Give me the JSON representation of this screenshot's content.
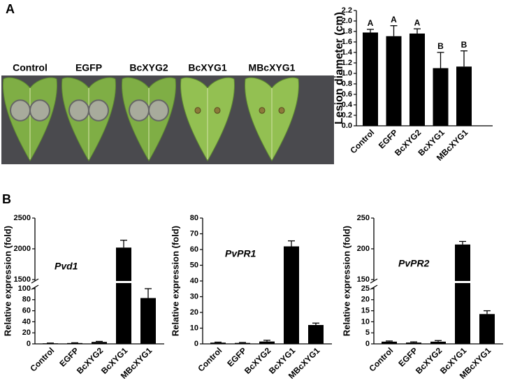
{
  "panel_labels": [
    "A",
    "B"
  ],
  "leaf_labels": [
    "Control",
    "EGFP",
    "BcXYG2",
    "BcXYG1",
    "MBcXYG1"
  ],
  "chart_data": [
    {
      "type": "bar",
      "ylabel": "Lesion diameter (cm)",
      "categories": [
        "Control",
        "EGFP",
        "BcXYG2",
        "BcXYG1",
        "MBcXYG1"
      ],
      "values": [
        1.78,
        1.71,
        1.76,
        1.1,
        1.13
      ],
      "errors": [
        0.06,
        0.2,
        0.09,
        0.3,
        0.3
      ],
      "annotations": [
        "A",
        "A",
        "A",
        "B",
        "B"
      ],
      "color": "#000000",
      "ylim": [
        0,
        2.2
      ],
      "yticks": [
        {
          "value": 0,
          "label": "0.0"
        },
        0.2,
        0.4,
        0.6,
        0.8,
        {
          "value": 1,
          "label": "1.0"
        },
        1.2,
        1.4,
        1.6,
        1.8,
        {
          "value": 2,
          "label": "2.0"
        },
        2.2
      ]
    },
    {
      "type": "bar",
      "title": "Pvd1",
      "ylabel": "Relative expression (fold)",
      "categories": [
        "Control",
        "EGFP",
        "BcXYG2",
        "BcXYG1",
        "MBcXYG1"
      ],
      "values": [
        1,
        1.5,
        3.5,
        2020,
        83
      ],
      "errors": [
        0.5,
        0.5,
        1,
        120,
        17
      ],
      "color": "#000000",
      "ylim": [
        0,
        2500
      ],
      "ybreak": [
        100,
        1500
      ],
      "yticks": [
        0,
        20,
        40,
        60,
        80,
        100,
        1500,
        2000,
        2500
      ]
    },
    {
      "type": "bar",
      "title": "PvPR1",
      "ylabel": "Relative expression (fold)",
      "categories": [
        "Control",
        "EGFP",
        "BcXYG2",
        "BcXYG1",
        "MBcXYG1"
      ],
      "values": [
        0.8,
        0.6,
        1.5,
        62,
        12
      ],
      "errors": [
        0.3,
        0.3,
        0.8,
        3.5,
        1.2
      ],
      "color": "#000000",
      "ylim": [
        0,
        80
      ],
      "yticks": [
        0,
        10,
        20,
        30,
        40,
        50,
        60,
        70,
        80
      ]
    },
    {
      "type": "bar",
      "title": "PvPR2",
      "ylabel": "Relative expression (fold)",
      "categories": [
        "Control",
        "EGFP",
        "BcXYG2",
        "BcXYG1",
        "MBcXYG1"
      ],
      "values": [
        1,
        0.6,
        1,
        207,
        13.5
      ],
      "errors": [
        0.3,
        0.3,
        0.5,
        5,
        1.5
      ],
      "color": "#000000",
      "ylim": [
        0,
        250
      ],
      "ybreak": [
        25,
        150
      ],
      "yticks": [
        0,
        5,
        10,
        15,
        20,
        25,
        150,
        200,
        250
      ]
    }
  ]
}
